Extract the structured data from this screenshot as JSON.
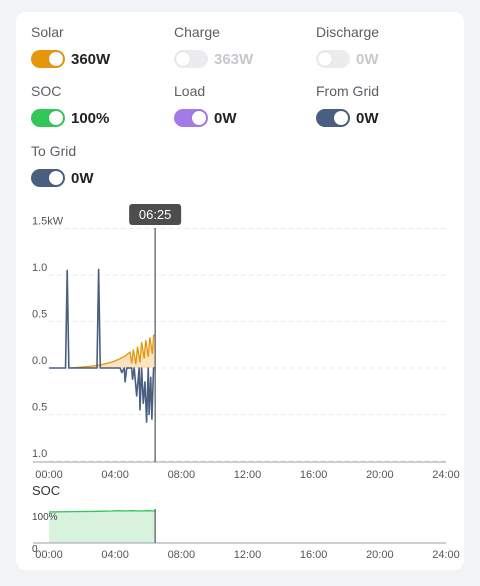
{
  "metrics": [
    {
      "key": "solar",
      "label": "Solar",
      "value": "360W",
      "enabled": true,
      "color": "#e6960a"
    },
    {
      "key": "charge",
      "label": "Charge",
      "value": "363W",
      "enabled": false,
      "color": "#ececee"
    },
    {
      "key": "discharge",
      "label": "Discharge",
      "value": "0W",
      "enabled": false,
      "color": "#ececee"
    },
    {
      "key": "soc",
      "label": "SOC",
      "value": "100%",
      "enabled": true,
      "color": "#33c75a"
    },
    {
      "key": "load",
      "label": "Load",
      "value": "0W",
      "enabled": true,
      "color": "#a27be8"
    },
    {
      "key": "from_grid",
      "label": "From Grid",
      "value": "0W",
      "enabled": true,
      "color": "#4a5f80"
    },
    {
      "key": "to_grid",
      "label": "To Grid",
      "value": "0W",
      "enabled": true,
      "color": "#4a5f80"
    }
  ],
  "tooltip": {
    "time": "06:25"
  },
  "chart_data": [
    {
      "type": "line",
      "title": "",
      "xlabel": "",
      "ylabel": "",
      "x_tick_labels": [
        "00:00",
        "04:00",
        "08:00",
        "12:00",
        "16:00",
        "20:00",
        "24:00"
      ],
      "y_tick_labels": [
        "1.5kW",
        "1.0",
        "0.5",
        "0.0",
        "0.5",
        "1.0"
      ],
      "ylim": [
        -1.0,
        1.5
      ],
      "xlim_hours": [
        0,
        24
      ],
      "cursor_time": "06:25",
      "series": [
        {
          "name": "Solar",
          "color": "#e6960a",
          "fill": "#fbe3bf",
          "points": [
            [
              1.2,
              0
            ],
            [
              2.0,
              0.01
            ],
            [
              2.6,
              0.02
            ],
            [
              3.0,
              0.03
            ],
            [
              3.5,
              0.05
            ],
            [
              3.9,
              0.07
            ],
            [
              4.3,
              0.1
            ],
            [
              4.6,
              0.13
            ],
            [
              4.9,
              0.17
            ],
            [
              5.0,
              0.05
            ],
            [
              5.1,
              0.2
            ],
            [
              5.25,
              0.04
            ],
            [
              5.35,
              0.23
            ],
            [
              5.5,
              0.06
            ],
            [
              5.6,
              0.28
            ],
            [
              5.75,
              0.1
            ],
            [
              5.85,
              0.3
            ],
            [
              6.0,
              0.12
            ],
            [
              6.1,
              0.33
            ],
            [
              6.25,
              0.15
            ],
            [
              6.32,
              0.35
            ],
            [
              6.42,
              0.36
            ]
          ]
        },
        {
          "name": "Grid",
          "color": "#4a5f80",
          "points": [
            [
              0,
              0
            ],
            [
              1.0,
              0
            ],
            [
              1.1,
              1.05
            ],
            [
              1.2,
              0
            ],
            [
              2.9,
              0
            ],
            [
              3.0,
              1.06
            ],
            [
              3.1,
              0
            ],
            [
              4.3,
              0
            ],
            [
              4.4,
              -0.05
            ],
            [
              4.55,
              0
            ],
            [
              4.6,
              -0.15
            ],
            [
              4.7,
              0
            ],
            [
              5.0,
              0
            ],
            [
              5.05,
              -0.12
            ],
            [
              5.15,
              0
            ],
            [
              5.3,
              -0.3
            ],
            [
              5.45,
              0
            ],
            [
              5.5,
              -0.45
            ],
            [
              5.6,
              0
            ],
            [
              5.7,
              -0.38
            ],
            [
              5.8,
              -0.15
            ],
            [
              5.9,
              -0.58
            ],
            [
              6.0,
              0
            ],
            [
              6.05,
              -0.5
            ],
            [
              6.15,
              -0.1
            ],
            [
              6.22,
              -0.55
            ],
            [
              6.32,
              0
            ],
            [
              6.42,
              0
            ]
          ]
        }
      ]
    },
    {
      "type": "area",
      "title": "SOC",
      "xlabel": "",
      "ylabel": "",
      "x_tick_labels": [
        "00:00",
        "04:00",
        "08:00",
        "12:00",
        "16:00",
        "20:00",
        "24:00"
      ],
      "y_tick_labels": [
        "100%",
        "0"
      ],
      "ylim": [
        0,
        100
      ],
      "xlim_hours": [
        0,
        24
      ],
      "series": [
        {
          "name": "SOC",
          "color": "#33c75a",
          "fill": "#d8f2de",
          "points": [
            [
              0,
              97
            ],
            [
              1.5,
              98
            ],
            [
              3.0,
              99
            ],
            [
              3.8,
              100
            ],
            [
              4.2,
              101
            ],
            [
              4.6,
              100
            ],
            [
              5.0,
              101
            ],
            [
              5.5,
              100
            ],
            [
              6.0,
              101
            ],
            [
              6.42,
              100
            ]
          ]
        }
      ]
    }
  ]
}
